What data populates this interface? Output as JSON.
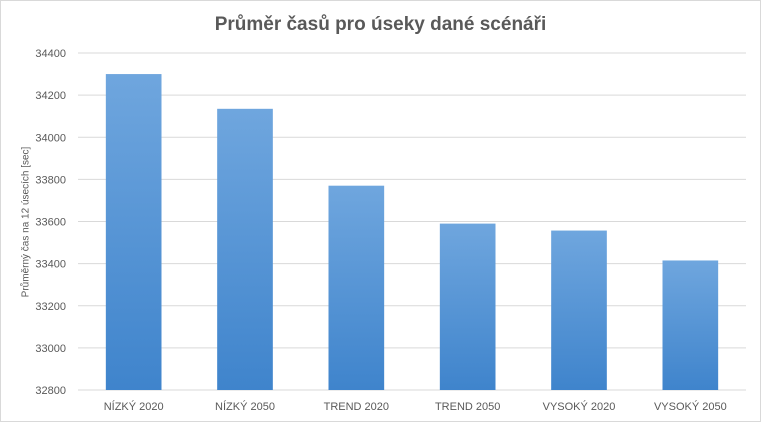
{
  "chart_data": {
    "type": "bar",
    "title": "Průměr časů pro úseky dané scénáři",
    "xlabel": "",
    "ylabel": "Průměrný čas na 12 úsecích [sec]",
    "categories": [
      "NÍZKÝ 2020",
      "NÍZKÝ 2050",
      "TREND 2020",
      "TREND 2050",
      "VYSOKÝ 2020",
      "VYSOKÝ 2050"
    ],
    "values": [
      34300,
      34135,
      33770,
      33590,
      33557,
      33415
    ],
    "ylim": [
      32800,
      34400
    ],
    "yticks": [
      "32800",
      "33000",
      "33200",
      "33400",
      "33600",
      "33800",
      "34000",
      "34200",
      "34400"
    ],
    "grid": true,
    "legend": "none",
    "colors": {
      "bar_top": "#6fa6de",
      "bar_bottom": "#3f84cc",
      "grid": "#d9d9d9",
      "text": "#595959"
    }
  }
}
